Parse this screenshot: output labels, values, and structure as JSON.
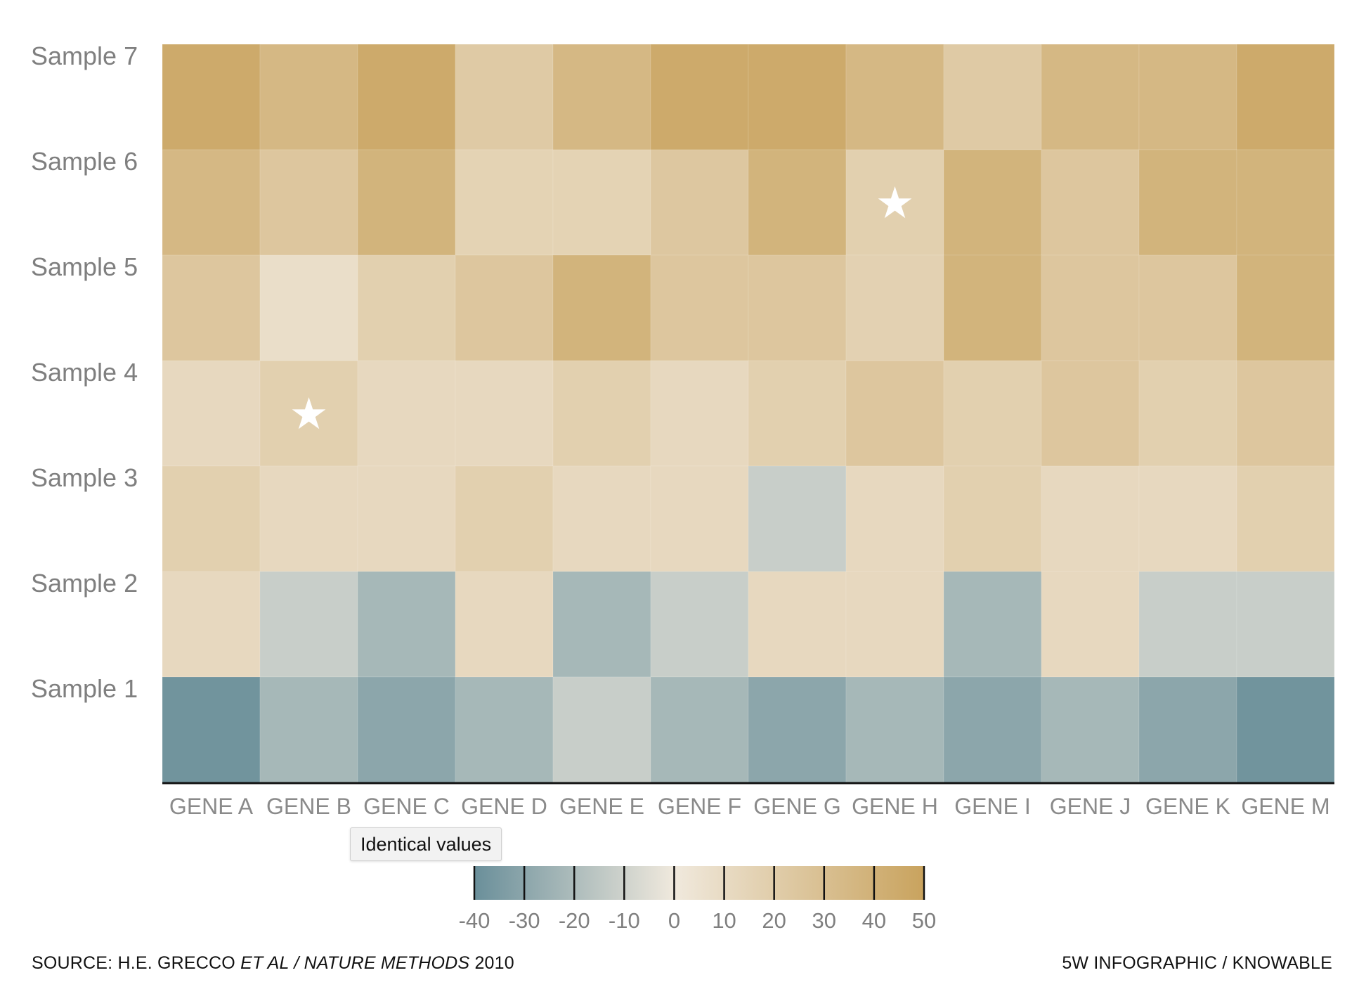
{
  "chart_data": {
    "type": "heatmap",
    "rows": [
      "Sample 7",
      "Sample 6",
      "Sample 5",
      "Sample 4",
      "Sample 3",
      "Sample 2",
      "Sample 1"
    ],
    "columns": [
      "GENE A",
      "GENE B",
      "GENE C",
      "GENE D",
      "GENE E",
      "GENE F",
      "GENE G",
      "GENE H",
      "GENE I",
      "GENE J",
      "GENE K",
      "GENE M"
    ],
    "values": [
      [
        45,
        35,
        45,
        22,
        35,
        45,
        45,
        35,
        22,
        35,
        35,
        45
      ],
      [
        35,
        25,
        38,
        16,
        16,
        24,
        38,
        18,
        38,
        25,
        38,
        38
      ],
      [
        25,
        8,
        18,
        25,
        38,
        25,
        25,
        17,
        38,
        25,
        25,
        38
      ],
      [
        12,
        18,
        12,
        12,
        18,
        12,
        18,
        25,
        18,
        25,
        18,
        25
      ],
      [
        18,
        12,
        12,
        18,
        12,
        12,
        -12,
        12,
        18,
        12,
        12,
        18
      ],
      [
        12,
        -12,
        -22,
        12,
        -22,
        -12,
        12,
        12,
        -22,
        12,
        -12,
        -12
      ],
      [
        -38,
        -22,
        -30,
        -22,
        -12,
        -22,
        -30,
        -22,
        -30,
        -22,
        -30,
        -38
      ]
    ],
    "identical_value_cells": [
      {
        "row": "Sample 6",
        "column": "GENE H"
      },
      {
        "row": "Sample 4",
        "column": "GENE B"
      }
    ],
    "scale": {
      "min": -40,
      "max": 50,
      "ticks": [
        -40,
        -30,
        -20,
        -10,
        0,
        10,
        20,
        30,
        40,
        50
      ],
      "tick_labels": [
        "-40",
        "-30",
        "-20",
        "-10",
        "0",
        "10",
        "20",
        "30",
        "40",
        "50"
      ],
      "colors": {
        "negative": "#6a8f9a",
        "zero": "#f0e9dd",
        "positive": "#c9a35e"
      }
    },
    "legend_placement": "bottom-center",
    "grid": false
  },
  "tooltip": {
    "text": "Identical values"
  },
  "footer": {
    "source_prefix": "SOURCE: H.E. GRECCO ",
    "source_italic": "ET AL / NATURE METHODS",
    "source_suffix": " 2010",
    "credit": "5W INFOGRAPHIC / KNOWABLE"
  },
  "colors": {
    "axis_line": "#111111",
    "star": "#ffffff"
  },
  "icons": {
    "identical_marker": "star-icon"
  }
}
